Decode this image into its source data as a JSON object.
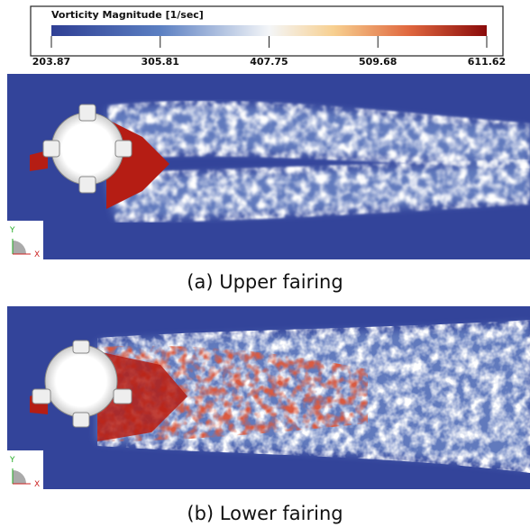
{
  "colorbar": {
    "title": "Vorticity Magnitude [1/sec]",
    "range": [
      203.87,
      611.62
    ],
    "ticks": [
      203.87,
      305.81,
      407.75,
      509.68,
      611.62
    ]
  },
  "panels": [
    {
      "caption": "(a) Upper fairing",
      "axis_labels": [
        "Y",
        "X"
      ]
    },
    {
      "caption": "(b) Lower fairing",
      "axis_labels": [
        "Y",
        "X"
      ]
    }
  ]
}
